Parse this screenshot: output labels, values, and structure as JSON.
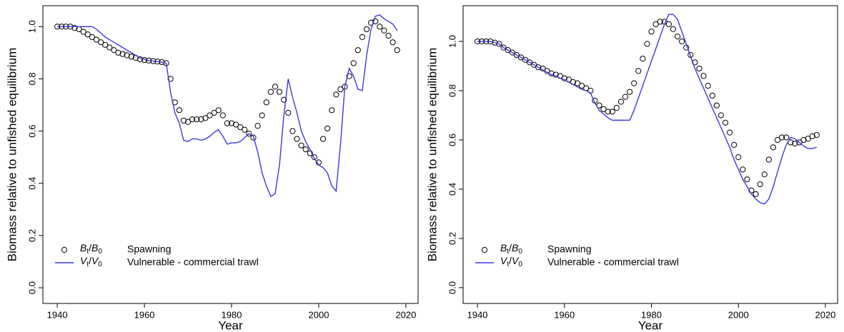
{
  "chart_data": [
    {
      "type": "line_scatter",
      "xlabel": "Year",
      "ylabel": "Biomass relative to unfished equilibrium",
      "x": [
        1940,
        1941,
        1942,
        1943,
        1944,
        1945,
        1946,
        1947,
        1948,
        1949,
        1950,
        1951,
        1952,
        1953,
        1954,
        1955,
        1956,
        1957,
        1958,
        1959,
        1960,
        1961,
        1962,
        1963,
        1964,
        1965,
        1966,
        1967,
        1968,
        1969,
        1970,
        1971,
        1972,
        1973,
        1974,
        1975,
        1976,
        1977,
        1978,
        1979,
        1980,
        1981,
        1982,
        1983,
        1984,
        1985,
        1986,
        1987,
        1988,
        1989,
        1990,
        1991,
        1992,
        1993,
        1994,
        1995,
        1996,
        1997,
        1998,
        1999,
        2000,
        2001,
        2002,
        2003,
        2004,
        2005,
        2006,
        2007,
        2008,
        2009,
        2010,
        2011,
        2012,
        2013,
        2014,
        2015,
        2016,
        2017,
        2018
      ],
      "series": [
        {
          "name": "Spawning",
          "symbol": "Bt/B0",
          "marker": "circle",
          "color": "#000000",
          "values": [
            1.0,
            1.0,
            1.0,
            1.0,
            0.995,
            0.99,
            0.98,
            0.97,
            0.96,
            0.95,
            0.94,
            0.93,
            0.92,
            0.91,
            0.9,
            0.895,
            0.89,
            0.885,
            0.88,
            0.875,
            0.872,
            0.87,
            0.868,
            0.866,
            0.864,
            0.86,
            0.8,
            0.71,
            0.68,
            0.64,
            0.635,
            0.645,
            0.645,
            0.645,
            0.65,
            0.66,
            0.67,
            0.68,
            0.66,
            0.63,
            0.63,
            0.625,
            0.615,
            0.605,
            0.59,
            0.575,
            0.62,
            0.66,
            0.71,
            0.75,
            0.77,
            0.75,
            0.72,
            0.67,
            0.6,
            0.57,
            0.545,
            0.53,
            0.515,
            0.5,
            0.48,
            0.57,
            0.61,
            0.68,
            0.74,
            0.76,
            0.77,
            0.81,
            0.86,
            0.91,
            0.96,
            0.99,
            1.015,
            1.02,
            1.0,
            0.985,
            0.965,
            0.94,
            0.91
          ]
        },
        {
          "name": "Vulnerable - commercial trawl",
          "symbol": "Vt/V0",
          "marker": "line",
          "color": "#3a3ae0",
          "values": [
            1.0,
            1.0,
            1.0,
            1.0,
            1.0,
            1.0,
            1.0,
            1.0,
            1.0,
            0.99,
            0.975,
            0.96,
            0.95,
            0.94,
            0.93,
            0.92,
            0.91,
            0.9,
            0.89,
            0.88,
            0.875,
            0.87,
            0.868,
            0.866,
            0.864,
            0.86,
            0.75,
            0.67,
            0.63,
            0.565,
            0.56,
            0.57,
            0.57,
            0.565,
            0.57,
            0.58,
            0.595,
            0.605,
            0.58,
            0.55,
            0.555,
            0.555,
            0.56,
            0.575,
            0.59,
            0.58,
            0.52,
            0.44,
            0.39,
            0.35,
            0.36,
            0.47,
            0.66,
            0.8,
            0.73,
            0.67,
            0.6,
            0.56,
            0.53,
            0.495,
            0.47,
            0.46,
            0.44,
            0.39,
            0.37,
            0.55,
            0.77,
            0.84,
            0.81,
            0.76,
            0.755,
            0.89,
            0.99,
            1.04,
            1.045,
            1.03,
            1.02,
            1.01,
            0.985
          ]
        }
      ],
      "xlim": [
        1936.7,
        2022.8
      ],
      "xticks": [
        1940,
        1960,
        1980,
        2000,
        2020
      ],
      "ylim": [
        -0.06,
        1.08
      ],
      "yticks": [
        {
          "value": 0,
          "label": "0.0"
        },
        0.2,
        0.4,
        0.6,
        0.8,
        {
          "value": 1,
          "label": "1.0"
        }
      ]
    },
    {
      "type": "line_scatter",
      "xlabel": "Year",
      "ylabel": "Biomass relative to unfished equilibrium",
      "x": [
        1940,
        1941,
        1942,
        1943,
        1944,
        1945,
        1946,
        1947,
        1948,
        1949,
        1950,
        1951,
        1952,
        1953,
        1954,
        1955,
        1956,
        1957,
        1958,
        1959,
        1960,
        1961,
        1962,
        1963,
        1964,
        1965,
        1966,
        1967,
        1968,
        1969,
        1970,
        1971,
        1972,
        1973,
        1974,
        1975,
        1976,
        1977,
        1978,
        1979,
        1980,
        1981,
        1982,
        1983,
        1984,
        1985,
        1986,
        1987,
        1988,
        1989,
        1990,
        1991,
        1992,
        1993,
        1994,
        1995,
        1996,
        1997,
        1998,
        1999,
        2000,
        2001,
        2002,
        2003,
        2004,
        2005,
        2006,
        2007,
        2008,
        2009,
        2010,
        2011,
        2012,
        2013,
        2014,
        2015,
        2016,
        2017,
        2018
      ],
      "series": [
        {
          "name": "Spawning",
          "symbol": "Bt/B0",
          "marker": "circle",
          "color": "#000000",
          "values": [
            1.0,
            1.0,
            1.0,
            1.0,
            0.995,
            0.99,
            0.975,
            0.965,
            0.955,
            0.945,
            0.935,
            0.925,
            0.915,
            0.905,
            0.895,
            0.89,
            0.88,
            0.87,
            0.865,
            0.86,
            0.85,
            0.845,
            0.835,
            0.83,
            0.82,
            0.81,
            0.8,
            0.76,
            0.74,
            0.725,
            0.715,
            0.715,
            0.73,
            0.755,
            0.775,
            0.795,
            0.83,
            0.88,
            0.93,
            0.99,
            1.04,
            1.07,
            1.08,
            1.08,
            1.07,
            1.05,
            1.02,
            1.0,
            0.975,
            0.945,
            0.915,
            0.89,
            0.86,
            0.82,
            0.78,
            0.74,
            0.7,
            0.67,
            0.63,
            0.58,
            0.53,
            0.48,
            0.44,
            0.395,
            0.38,
            0.42,
            0.46,
            0.52,
            0.57,
            0.6,
            0.61,
            0.61,
            0.59,
            0.585,
            0.59,
            0.6,
            0.605,
            0.615,
            0.62
          ]
        },
        {
          "name": "Vulnerable - commercial trawl",
          "symbol": "Vt/V0",
          "marker": "line",
          "color": "#3a3ae0",
          "values": [
            1.0,
            1.0,
            1.0,
            1.0,
            0.995,
            0.99,
            0.975,
            0.965,
            0.955,
            0.945,
            0.935,
            0.925,
            0.915,
            0.905,
            0.895,
            0.885,
            0.875,
            0.865,
            0.86,
            0.85,
            0.845,
            0.835,
            0.825,
            0.815,
            0.805,
            0.8,
            0.79,
            0.75,
            0.72,
            0.705,
            0.69,
            0.68,
            0.68,
            0.68,
            0.68,
            0.68,
            0.72,
            0.77,
            0.82,
            0.87,
            0.92,
            0.97,
            1.02,
            1.07,
            1.11,
            1.11,
            1.09,
            1.04,
            0.99,
            0.94,
            0.89,
            0.85,
            0.81,
            0.77,
            0.73,
            0.69,
            0.65,
            0.61,
            0.57,
            0.52,
            0.48,
            0.44,
            0.41,
            0.38,
            0.36,
            0.345,
            0.34,
            0.36,
            0.41,
            0.47,
            0.53,
            0.58,
            0.61,
            0.605,
            0.59,
            0.575,
            0.565,
            0.565,
            0.57
          ]
        }
      ],
      "xlim": [
        1936.7,
        2022.8
      ],
      "xticks": [
        1940,
        1960,
        1980,
        2000,
        2020
      ],
      "ylim": [
        -0.064,
        1.145
      ],
      "yticks": [
        {
          "value": 0,
          "label": "0.0"
        },
        0.2,
        0.4,
        0.6,
        0.8,
        {
          "value": 1,
          "label": "1.0"
        }
      ]
    }
  ]
}
